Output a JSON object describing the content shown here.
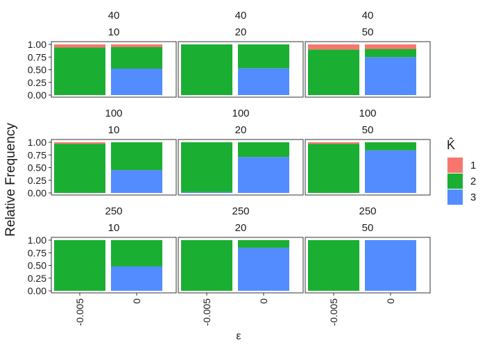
{
  "chart_data": {
    "type": "bar",
    "stacked": true,
    "normalized": true,
    "xlabel": "ε",
    "ylabel": "Relative Frequency",
    "legend": {
      "title": "K̂",
      "placement": "right",
      "entries": [
        {
          "label": "1",
          "color": "#F8766D"
        },
        {
          "label": "2",
          "color": "#1AAF32"
        },
        {
          "label": "3",
          "color": "#528CFF"
        }
      ]
    },
    "categories": [
      "-0.005",
      "0"
    ],
    "ylim": [
      0,
      1
    ],
    "yticks": [
      "0.00",
      "0.25",
      "0.50",
      "0.75",
      "1.00"
    ],
    "grid": false,
    "panels": [
      {
        "row_label": "40",
        "col_label": "10",
        "bars": [
          {
            "x": "-0.005",
            "k1": 0.06,
            "k2": 0.94,
            "k3": 0.0
          },
          {
            "x": "0",
            "k1": 0.05,
            "k2": 0.43,
            "k3": 0.52
          }
        ]
      },
      {
        "row_label": "40",
        "col_label": "20",
        "bars": [
          {
            "x": "-0.005",
            "k1": 0.0,
            "k2": 1.0,
            "k3": 0.0
          },
          {
            "x": "0",
            "k1": 0.0,
            "k2": 0.47,
            "k3": 0.53
          }
        ]
      },
      {
        "row_label": "40",
        "col_label": "50",
        "bars": [
          {
            "x": "-0.005",
            "k1": 0.1,
            "k2": 0.9,
            "k3": 0.0
          },
          {
            "x": "0",
            "k1": 0.09,
            "k2": 0.16,
            "k3": 0.75
          }
        ]
      },
      {
        "row_label": "100",
        "col_label": "10",
        "bars": [
          {
            "x": "-0.005",
            "k1": 0.03,
            "k2": 0.97,
            "k3": 0.0
          },
          {
            "x": "0",
            "k1": 0.0,
            "k2": 0.55,
            "k3": 0.45
          }
        ]
      },
      {
        "row_label": "100",
        "col_label": "20",
        "bars": [
          {
            "x": "-0.005",
            "k1": 0.0,
            "k2": 0.98,
            "k3": 0.02
          },
          {
            "x": "0",
            "k1": 0.0,
            "k2": 0.29,
            "k3": 0.71
          }
        ]
      },
      {
        "row_label": "100",
        "col_label": "50",
        "bars": [
          {
            "x": "-0.005",
            "k1": 0.03,
            "k2": 0.97,
            "k3": 0.0
          },
          {
            "x": "0",
            "k1": 0.0,
            "k2": 0.16,
            "k3": 0.84
          }
        ]
      },
      {
        "row_label": "250",
        "col_label": "10",
        "bars": [
          {
            "x": "-0.005",
            "k1": 0.0,
            "k2": 1.0,
            "k3": 0.0
          },
          {
            "x": "0",
            "k1": 0.0,
            "k2": 0.52,
            "k3": 0.48
          }
        ]
      },
      {
        "row_label": "250",
        "col_label": "20",
        "bars": [
          {
            "x": "-0.005",
            "k1": 0.0,
            "k2": 1.0,
            "k3": 0.0
          },
          {
            "x": "0",
            "k1": 0.0,
            "k2": 0.15,
            "k3": 0.85
          }
        ]
      },
      {
        "row_label": "250",
        "col_label": "50",
        "bars": [
          {
            "x": "-0.005",
            "k1": 0.0,
            "k2": 1.0,
            "k3": 0.0
          },
          {
            "x": "0",
            "k1": 0.0,
            "k2": 0.0,
            "k3": 1.0
          }
        ]
      }
    ]
  }
}
